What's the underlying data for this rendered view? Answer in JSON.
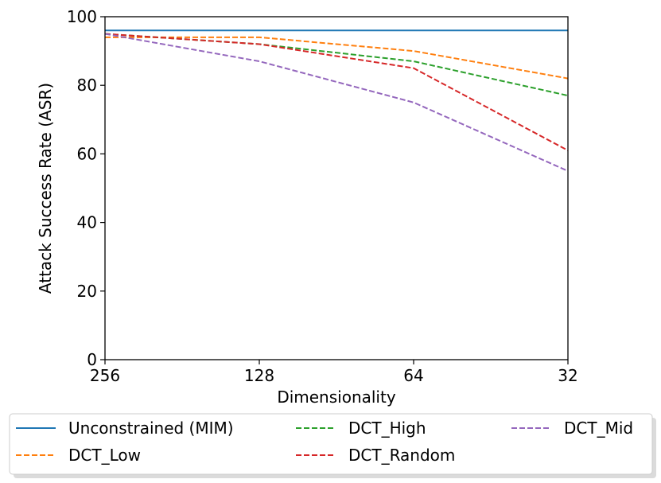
{
  "chart_data": {
    "type": "line",
    "title": "",
    "xlabel": "Dimensionality",
    "ylabel": "Attack Success Rate (ASR)",
    "x": [
      256,
      128,
      64,
      32
    ],
    "x_tick_labels": [
      "256",
      "128",
      "64",
      "32"
    ],
    "x_scale": "log2-reversed",
    "ylim": [
      0,
      100
    ],
    "y_ticks": [
      0,
      20,
      40,
      60,
      80,
      100
    ],
    "y_tick_labels": [
      "0",
      "20",
      "40",
      "60",
      "80",
      "100"
    ],
    "legend_position": "below",
    "series": [
      {
        "name": "Unconstrained (MIM)",
        "values": [
          96,
          96,
          96,
          96
        ],
        "color": "#1f77b4",
        "style": "solid"
      },
      {
        "name": "DCT_Low",
        "values": [
          94,
          94,
          90,
          82
        ],
        "color": "#ff7f0e",
        "style": "dashed"
      },
      {
        "name": "DCT_High",
        "values": [
          95,
          92,
          87,
          77
        ],
        "color": "#2ca02c",
        "style": "dashed"
      },
      {
        "name": "DCT_Random",
        "values": [
          95,
          92,
          85,
          61
        ],
        "color": "#d62728",
        "style": "dashed"
      },
      {
        "name": "DCT_Mid",
        "values": [
          95,
          87,
          75,
          55
        ],
        "color": "#9467bd",
        "style": "dashed"
      }
    ]
  }
}
